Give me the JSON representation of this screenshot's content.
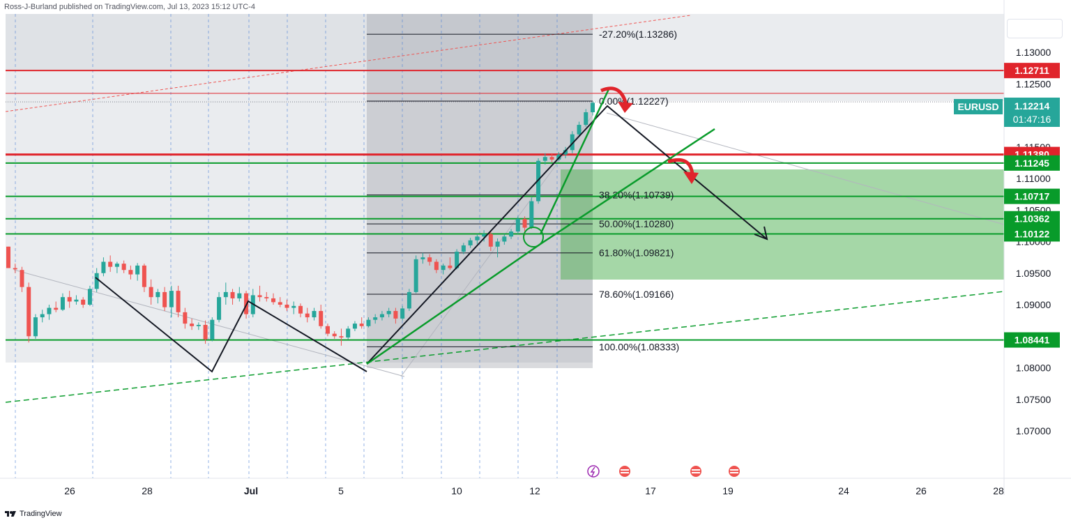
{
  "publisher_text": "Ross-J-Burland published on TradingView.com, Jul 13, 2023 15:12 UTC-4",
  "brand_text": "TradingView",
  "colors": {
    "up": "#26a69a",
    "down": "#ef5350",
    "red_line": "#e0242b",
    "green_line": "#089b2a",
    "fib": "#131722",
    "zone_gray": "#b2b5be",
    "zone_green": "#4caf50"
  },
  "chart_data": {
    "type": "candlestick",
    "symbol": "EURUSD",
    "last_price": "1.12214",
    "countdown": "01:47:16",
    "x_ticks": [
      "26",
      "28",
      "Jul",
      "5",
      "10",
      "12",
      "17",
      "19",
      "24",
      "26",
      "28"
    ],
    "y_ticks": [
      "1.13000",
      "1.12500",
      "1.11500",
      "1.11000",
      "1.10500",
      "1.10000",
      "1.09500",
      "1.09000",
      "1.08000",
      "1.07500",
      "1.07000"
    ],
    "fib_levels": [
      {
        "label": "-27.20%(1.13286)",
        "price": 1.13286
      },
      {
        "label": "0.00%(1.12227)",
        "price": 1.12227
      },
      {
        "label": "38.20%(1.10739)",
        "price": 1.10739
      },
      {
        "label": "50.00%(1.10280)",
        "price": 1.1028
      },
      {
        "label": "61.80%(1.09821)",
        "price": 1.09821
      },
      {
        "label": "78.60%(1.09166)",
        "price": 1.09166
      },
      {
        "label": "100.00%(1.08333)",
        "price": 1.08333
      }
    ],
    "horizontal_levels": [
      {
        "label": "1.12711",
        "price": 1.12711,
        "color": "red"
      },
      {
        "label": "1.11380",
        "price": 1.1138,
        "color": "red"
      },
      {
        "label": "1.11245",
        "price": 1.11245,
        "color": "green"
      },
      {
        "label": "1.10717",
        "price": 1.10717,
        "color": "green"
      },
      {
        "label": "1.10362",
        "price": 1.10362,
        "color": "green"
      },
      {
        "label": "1.10122",
        "price": 1.10122,
        "color": "green"
      },
      {
        "label": "1.08441",
        "price": 1.08441,
        "color": "green"
      }
    ],
    "candles": [
      [
        1.0992,
        1.0992,
        1.0958,
        1.0958
      ],
      [
        1.0958,
        1.0965,
        1.095,
        1.0956
      ],
      [
        1.0955,
        1.096,
        1.092,
        1.0928
      ],
      [
        1.0928,
        1.0935,
        1.084,
        1.085
      ],
      [
        1.085,
        1.0885,
        1.0846,
        1.088
      ],
      [
        1.088,
        1.0892,
        1.0872,
        1.0885
      ],
      [
        1.0885,
        1.09,
        1.0876,
        1.0895
      ],
      [
        1.0895,
        1.0905,
        1.0888,
        1.0892
      ],
      [
        1.0892,
        1.0918,
        1.089,
        1.0912
      ],
      [
        1.0912,
        1.0922,
        1.0895,
        1.0905
      ],
      [
        1.0905,
        1.0915,
        1.09,
        1.0908
      ],
      [
        1.0908,
        1.0912,
        1.0895,
        1.09
      ],
      [
        1.09,
        1.093,
        1.0898,
        1.0925
      ],
      [
        1.0925,
        1.0958,
        1.092,
        1.095
      ],
      [
        1.095,
        1.0975,
        1.0945,
        1.0968
      ],
      [
        1.0968,
        1.0978,
        1.0952,
        1.096
      ],
      [
        1.096,
        1.0968,
        1.095,
        1.0965
      ],
      [
        1.0965,
        1.097,
        1.095,
        1.0955
      ],
      [
        1.0955,
        1.0962,
        1.094,
        1.0948
      ],
      [
        1.0948,
        1.0966,
        1.0938,
        1.0962
      ],
      [
        1.0962,
        1.0965,
        1.092,
        1.0928
      ],
      [
        1.0928,
        1.094,
        1.09,
        1.0912
      ],
      [
        1.0912,
        1.0925,
        1.0902,
        1.092
      ],
      [
        1.092,
        1.0928,
        1.089,
        1.0896
      ],
      [
        1.0896,
        1.093,
        1.088,
        1.0922
      ],
      [
        1.0922,
        1.093,
        1.088,
        1.0888
      ],
      [
        1.0888,
        1.0895,
        1.0862,
        1.087
      ],
      [
        1.087,
        1.0878,
        1.086,
        1.0866
      ],
      [
        1.0866,
        1.0872,
        1.086,
        1.0868
      ],
      [
        1.0868,
        1.0875,
        1.0838,
        1.0845
      ],
      [
        1.0845,
        1.088,
        1.0842,
        1.0876
      ],
      [
        1.0876,
        1.092,
        1.0872,
        1.0912
      ],
      [
        1.0912,
        1.0935,
        1.09,
        1.092
      ],
      [
        1.092,
        1.0925,
        1.09,
        1.091
      ],
      [
        1.091,
        1.0928,
        1.0905,
        1.0918
      ],
      [
        1.0918,
        1.0922,
        1.0878,
        1.0885
      ],
      [
        1.0885,
        1.0925,
        1.088,
        1.0915
      ],
      [
        1.0915,
        1.093,
        1.0905,
        1.0912
      ],
      [
        1.0912,
        1.092,
        1.0905,
        1.091
      ],
      [
        1.091,
        1.0918,
        1.09,
        1.0904
      ],
      [
        1.0904,
        1.0912,
        1.0896,
        1.09
      ],
      [
        1.09,
        1.0908,
        1.089,
        1.0895
      ],
      [
        1.0895,
        1.0905,
        1.0885,
        1.0898
      ],
      [
        1.0898,
        1.0902,
        1.088,
        1.0886
      ],
      [
        1.0886,
        1.0895,
        1.0872,
        1.088
      ],
      [
        1.088,
        1.0895,
        1.0875,
        1.089
      ],
      [
        1.089,
        1.09,
        1.0862,
        1.0866
      ],
      [
        1.0866,
        1.087,
        1.085,
        1.0854
      ],
      [
        1.0854,
        1.0858,
        1.0846,
        1.085
      ],
      [
        1.085,
        1.0862,
        1.0835,
        1.0848
      ],
      [
        1.0848,
        1.0866,
        1.0845,
        1.0862
      ],
      [
        1.0862,
        1.0874,
        1.0858,
        1.087
      ],
      [
        1.087,
        1.088,
        1.0862,
        1.0866
      ],
      [
        1.0866,
        1.088,
        1.0864,
        1.0876
      ],
      [
        1.0876,
        1.0885,
        1.087,
        1.088
      ],
      [
        1.088,
        1.089,
        1.0875,
        1.0885
      ],
      [
        1.0885,
        1.0895,
        1.088,
        1.089
      ],
      [
        1.089,
        1.0895,
        1.087,
        1.0878
      ],
      [
        1.0878,
        1.0898,
        1.0875,
        1.0894
      ],
      [
        1.0894,
        1.0925,
        1.089,
        1.092
      ],
      [
        1.092,
        1.0978,
        1.0918,
        1.0972
      ],
      [
        1.0972,
        1.0982,
        1.0965,
        1.0975
      ],
      [
        1.0975,
        1.098,
        1.0962,
        1.0968
      ],
      [
        1.0968,
        1.0972,
        1.095,
        1.0955
      ],
      [
        1.0955,
        1.0965,
        1.0948,
        1.0962
      ],
      [
        1.0962,
        1.0975,
        1.0955,
        1.0958
      ],
      [
        1.0958,
        1.0988,
        1.0956,
        1.0984
      ],
      [
        1.0984,
        1.0998,
        1.098,
        1.0994
      ],
      [
        1.0994,
        1.1006,
        1.099,
        1.1002
      ],
      [
        1.1002,
        1.1012,
        1.0996,
        1.1008
      ],
      [
        1.1008,
        1.1018,
        1.1,
        1.1012
      ],
      [
        1.1012,
        1.1016,
        1.0985,
        1.0992
      ],
      [
        1.0992,
        1.1005,
        1.0975,
        1.1
      ],
      [
        1.1,
        1.1012,
        1.0995,
        1.1008
      ],
      [
        1.1008,
        1.102,
        1.1004,
        1.1016
      ],
      [
        1.1016,
        1.104,
        1.1012,
        1.1036
      ],
      [
        1.1036,
        1.104,
        1.101,
        1.1022
      ],
      [
        1.1022,
        1.107,
        1.102,
        1.1064
      ],
      [
        1.1064,
        1.1132,
        1.106,
        1.1128
      ],
      [
        1.1128,
        1.114,
        1.1122,
        1.1134
      ],
      [
        1.1134,
        1.114,
        1.1126,
        1.113
      ],
      [
        1.113,
        1.1142,
        1.1128,
        1.1138
      ],
      [
        1.1138,
        1.115,
        1.1132,
        1.1145
      ],
      [
        1.1145,
        1.1175,
        1.114,
        1.117
      ],
      [
        1.117,
        1.119,
        1.1166,
        1.1185
      ],
      [
        1.1185,
        1.121,
        1.1182,
        1.1205
      ],
      [
        1.1205,
        1.1222,
        1.12,
        1.122
      ]
    ]
  },
  "footer": {
    "settings_label": ""
  }
}
